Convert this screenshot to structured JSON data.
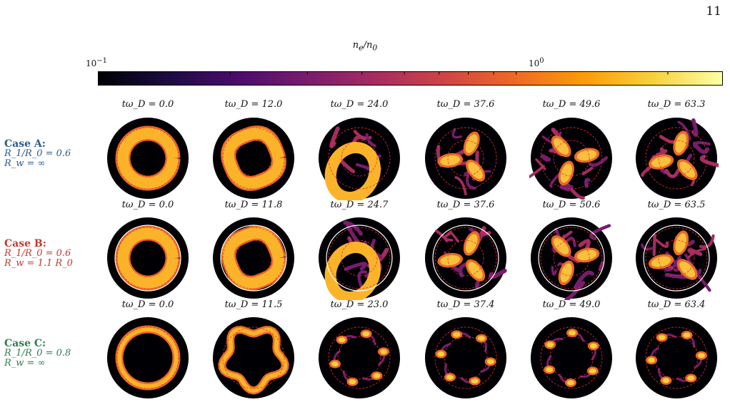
{
  "page_number": "11",
  "colorbar": {
    "label": "n_e/n_0",
    "tick_min": "10^{-1}",
    "tick_mid": "10^{0}",
    "colormap": "inferno",
    "colors": [
      "#000004",
      "#1b0c41",
      "#4a0c6b",
      "#781c6d",
      "#a52c60",
      "#cf4446",
      "#ed6925",
      "#fb9b06",
      "#f7d13d",
      "#fcffa4"
    ]
  },
  "rows": [
    {
      "title": "Case A:",
      "line1": "R_1/R_0 = 0.6",
      "line2": "R_w = ∞",
      "color": "#2b5a8c",
      "times": [
        "0.0",
        "12.0",
        "24.0",
        "37.6",
        "49.6",
        "63.3"
      ]
    },
    {
      "title": "Case B:",
      "line1": "R_1/R_0 = 0.6",
      "line2": "R_w = 1.1 R_0",
      "color": "#c0392b",
      "times": [
        "0.0",
        "11.8",
        "24.7",
        "37.6",
        "50.6",
        "63.5"
      ]
    },
    {
      "title": "Case C:",
      "line1": "R_1/R_0 = 0.8",
      "line2": "R_w = ∞",
      "color": "#2e7d4f",
      "times": [
        "0.0",
        "11.5",
        "23.0",
        "37.4",
        "49.0",
        "63.4"
      ]
    }
  ],
  "time_prefix": "tω_D = "
}
